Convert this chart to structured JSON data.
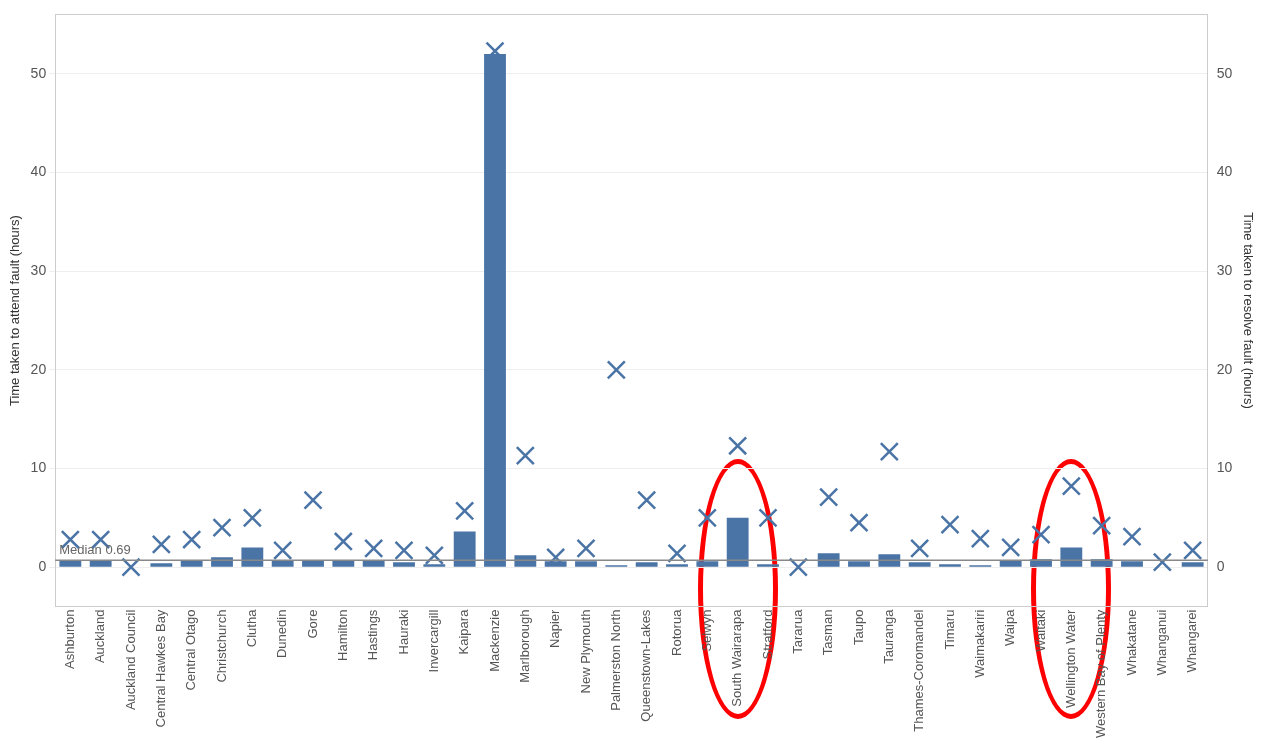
{
  "chart_data": {
    "type": "bar",
    "ylabel": "Time taken to attend fault (hours)",
    "y2label": "Time taken to resolve fault (hours)",
    "categories": [
      "Ashburton",
      "Auckland",
      "Auckland Council",
      "Central Hawkes Bay",
      "Central Otago",
      "Christchurch",
      "Clutha",
      "Dunedin",
      "Gore",
      "Hamilton",
      "Hastings",
      "Hauraki",
      "Invercargill",
      "Kaipara",
      "Mackenzie",
      "Marlborough",
      "Napier",
      "New Plymouth",
      "Palmerston North",
      "Queenstown-Lakes",
      "Rotorua",
      "Selwyn",
      "South Wairarapa",
      "Stratford",
      "Tararua",
      "Tasman",
      "Taupo",
      "Tauranga",
      "Thames-Coromandel",
      "Timaru",
      "Waimakariri",
      "Waipa",
      "Waitaki",
      "Wellington Water",
      "Western Bay of Plenty",
      "Whakatane",
      "Whanganui",
      "Whangarei"
    ],
    "series": [
      {
        "color": "#4a74a6",
        "values": [
          0.7,
          0.7,
          0,
          0.4,
          0.7,
          1.0,
          2.0,
          0.7,
          0.7,
          0.7,
          0.7,
          0.5,
          0.3,
          3.6,
          52,
          1.2,
          0.6,
          0.6,
          0.2,
          0.5,
          0.3,
          0.6,
          5.0,
          0.3,
          0,
          1.4,
          0.6,
          1.3,
          0.5,
          0.3,
          0.2,
          0.7,
          0.8,
          2.0,
          0.8,
          0.6,
          0,
          0.5
        ]
      },
      {
        "type": "scatter",
        "axis": "y2",
        "color": "#4a74a6",
        "marker": "cross",
        "values": [
          2.8,
          2.8,
          0,
          2.3,
          2.8,
          4.0,
          5.0,
          1.7,
          6.8,
          2.6,
          1.9,
          1.7,
          1.2,
          5.7,
          52.3,
          11.3,
          1.0,
          1.9,
          20.0,
          6.8,
          1.4,
          5.0,
          12.3,
          5.0,
          0,
          7.1,
          4.5,
          11.7,
          1.9,
          4.3,
          2.9,
          2.0,
          3.3,
          8.2,
          4.2,
          3.1,
          0.5,
          1.7
        ]
      }
    ],
    "ylim": [
      -4,
      56
    ],
    "yticks": [
      0,
      10,
      20,
      30,
      40,
      50
    ],
    "y2lim": [
      -4,
      56
    ],
    "y2ticks": [
      0,
      10,
      20,
      30,
      40,
      50
    ],
    "grid": "y",
    "legend": false,
    "ref_lines": [
      {
        "axis": "y",
        "value": 0.69,
        "label": "Median 0.69",
        "color": "#888888"
      }
    ]
  }
}
